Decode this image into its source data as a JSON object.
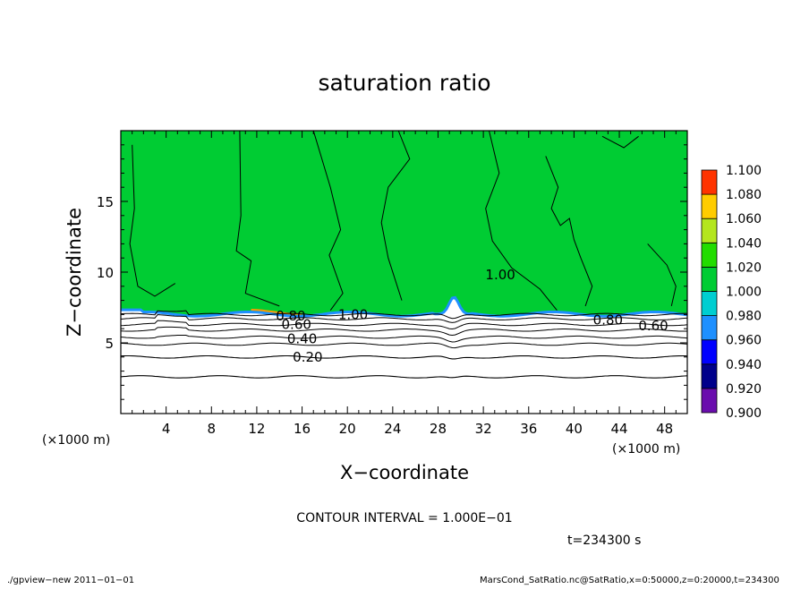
{
  "chart_data": {
    "type": "heatmap",
    "title": "saturation ratio",
    "xlabel": "X−coordinate",
    "ylabel": "Z−coordinate",
    "x_unit_left": "(×1000 m)",
    "x_unit_right": "(×1000 m)",
    "xlim": [
      0,
      50
    ],
    "ylim": [
      0,
      20
    ],
    "x_ticks": [
      4,
      8,
      12,
      16,
      20,
      24,
      28,
      32,
      36,
      40,
      44,
      48
    ],
    "y_ticks": [
      5,
      10,
      15
    ],
    "colorbar": {
      "levels": [
        "0.900",
        "0.920",
        "0.940",
        "0.960",
        "0.980",
        "1.000",
        "1.020",
        "1.040",
        "1.060",
        "1.080",
        "1.100"
      ],
      "colors": [
        "#6a0dad",
        "#00008b",
        "#0000ff",
        "#1e90ff",
        "#00ced1",
        "#00cc33",
        "#22dd00",
        "#b4e61e",
        "#ffcc00",
        "#ff3300",
        "#f08080"
      ]
    },
    "contour_interval_text": "CONTOUR INTERVAL = 1.000E−01",
    "time_text": "t=234300 s",
    "contour_labels": [
      {
        "text": "0.20",
        "x": 16.5,
        "z": 4.0
      },
      {
        "text": "0.40",
        "x": 16.0,
        "z": 5.3
      },
      {
        "text": "0.60",
        "x": 15.5,
        "z": 6.3
      },
      {
        "text": "0.80",
        "x": 15.0,
        "z": 6.9
      },
      {
        "text": "1.00",
        "x": 20.5,
        "z": 7.0
      },
      {
        "text": "1.00",
        "x": 33.5,
        "z": 9.8
      },
      {
        "text": "0.80",
        "x": 43.0,
        "z": 6.6
      },
      {
        "text": "0.60",
        "x": 47.0,
        "z": 6.2
      }
    ],
    "contour_levels_below_cloud": [
      {
        "z": 2.6
      },
      {
        "z": 4.0
      },
      {
        "z": 4.9
      },
      {
        "z": 5.4
      },
      {
        "z": 5.9
      },
      {
        "z": 6.3
      },
      {
        "z": 6.7
      },
      {
        "z": 7.0
      }
    ]
  },
  "footer": {
    "left": "./gpview−new   2011−01−01",
    "right": "MarsCond_SatRatio.nc@SatRatio,x=0:50000,z=0:20000,t=234300"
  },
  "colors": {
    "field": "#00cc33",
    "background": "#ffffff",
    "contour": "#000000"
  }
}
